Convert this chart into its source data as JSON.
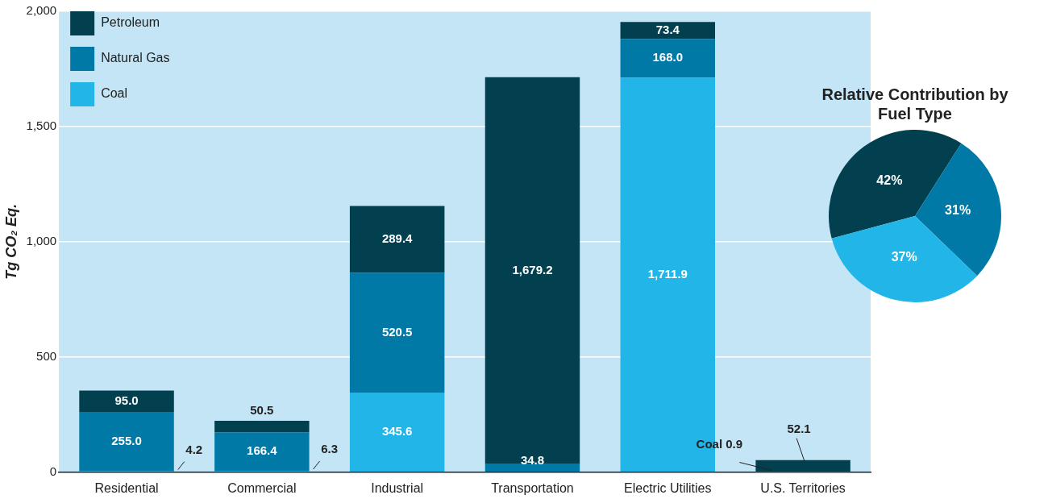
{
  "chart_data": [
    {
      "type": "bar",
      "stacked": true,
      "ylabel": "Tg CO₂ Eq.",
      "categories": [
        "Residential",
        "Commercial",
        "Industrial",
        "Transportation",
        "Electric Utilities",
        "U.S. Territories"
      ],
      "ylim": [
        0,
        2000
      ],
      "yticks": [
        0,
        500,
        {
          "value": 1000,
          "label": "1,000"
        },
        {
          "value": 1500,
          "label": "1,500"
        },
        {
          "value": 2000,
          "label": "2,000"
        }
      ],
      "grid": "y",
      "legend": "top left",
      "series": [
        {
          "name": "Coal",
          "color": "#22b5e8",
          "values": [
            4.2,
            6.3,
            345.6,
            null,
            1711.9,
            0.9
          ],
          "value_labels": [
            "4.2",
            "6.3",
            "345.6",
            null,
            "1,711.9",
            "Coal 0.9"
          ]
        },
        {
          "name": "Natural Gas",
          "color": "#0079a6",
          "values": [
            255.0,
            166.4,
            520.5,
            34.8,
            168.0,
            null
          ],
          "value_labels": [
            "255.0",
            "166.4",
            "520.5",
            "34.8",
            "168.0",
            null
          ]
        },
        {
          "name": "Petroleum",
          "color": "#02404f",
          "values": [
            95.0,
            50.5,
            289.4,
            1679.2,
            73.4,
            52.1
          ],
          "value_labels": [
            "95.0",
            "50.5",
            "289.4",
            "1,679.2",
            "73.4",
            "52.1"
          ]
        }
      ]
    },
    {
      "type": "pie",
      "title": "Relative Contribution by Fuel Type",
      "categories": [
        null,
        null,
        null
      ],
      "values": [
        42,
        31,
        37
      ],
      "colors": [
        "#02404f",
        "#0079a6",
        "#22b5e8"
      ],
      "value_labels": [
        "42%",
        "31%",
        "37%"
      ]
    }
  ]
}
